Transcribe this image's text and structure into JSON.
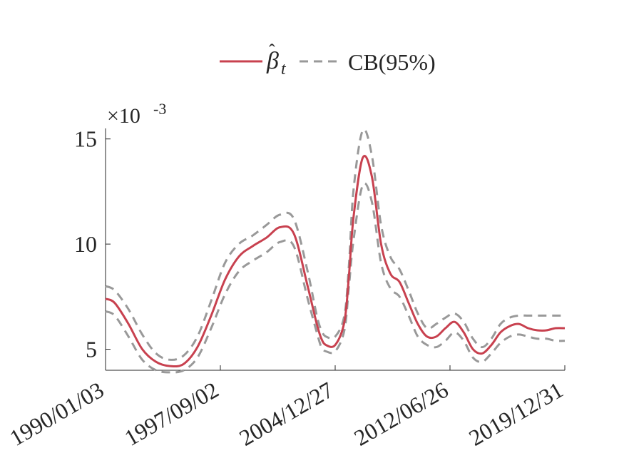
{
  "chart_data": {
    "type": "line",
    "title": "",
    "xlabel": "",
    "ylabel": "",
    "y_exponent_label": "×10",
    "y_exponent_power": "-3",
    "ylim": [
      4.0,
      15.5
    ],
    "yticks": [
      5,
      10,
      15
    ],
    "ytick_labels": [
      "5",
      "10",
      "15"
    ],
    "xlim": [
      0,
      1
    ],
    "xticks": [
      0,
      0.25,
      0.5,
      0.75,
      1.0
    ],
    "xtick_labels": [
      "1990/01/03",
      "1997/09/02",
      "2004/12/27",
      "2012/06/26",
      "2019/12/31"
    ],
    "legend_position": "top",
    "grid": false,
    "colors": {
      "estimate": "#c8414f",
      "band": "#999999",
      "axis": "#262626"
    },
    "legend": {
      "estimate_label": "β",
      "band_label": "CB(95%)"
    },
    "series": [
      {
        "name": "estimate",
        "style": "solid",
        "x": [
          0,
          0.02,
          0.05,
          0.08,
          0.11,
          0.14,
          0.17,
          0.2,
          0.23,
          0.26,
          0.29,
          0.32,
          0.35,
          0.38,
          0.41,
          0.44,
          0.46,
          0.47,
          0.48,
          0.5,
          0.52,
          0.53,
          0.54,
          0.56,
          0.58,
          0.6,
          0.62,
          0.64,
          0.66,
          0.68,
          0.7,
          0.72,
          0.74,
          0.76,
          0.78,
          0.8,
          0.82,
          0.84,
          0.86,
          0.88,
          0.9,
          0.92,
          0.94,
          0.96,
          0.98,
          1.0
        ],
        "values": [
          7.4,
          7.2,
          6.2,
          5.0,
          4.4,
          4.2,
          4.3,
          5.1,
          6.6,
          8.3,
          9.4,
          9.9,
          10.3,
          10.8,
          10.5,
          8.0,
          6.2,
          5.5,
          5.2,
          5.2,
          6.3,
          8.5,
          11.3,
          14.1,
          13.2,
          10.0,
          8.6,
          8.2,
          7.2,
          6.2,
          5.6,
          5.6,
          6.0,
          6.3,
          5.8,
          5.0,
          4.8,
          5.2,
          5.8,
          6.1,
          6.2,
          6.0,
          5.9,
          5.9,
          6.0,
          6.0
        ]
      },
      {
        "name": "upper",
        "style": "dashed",
        "x": [
          0,
          0.02,
          0.05,
          0.08,
          0.11,
          0.14,
          0.17,
          0.2,
          0.23,
          0.26,
          0.29,
          0.32,
          0.35,
          0.38,
          0.41,
          0.44,
          0.46,
          0.47,
          0.48,
          0.5,
          0.52,
          0.53,
          0.54,
          0.56,
          0.58,
          0.6,
          0.62,
          0.64,
          0.66,
          0.68,
          0.7,
          0.72,
          0.74,
          0.76,
          0.78,
          0.8,
          0.82,
          0.84,
          0.86,
          0.88,
          0.9,
          0.92,
          0.94,
          0.96,
          0.98,
          1.0
        ],
        "values": [
          8.0,
          7.8,
          6.9,
          5.7,
          4.8,
          4.5,
          4.7,
          5.6,
          7.3,
          9.1,
          10.0,
          10.4,
          10.9,
          11.4,
          11.2,
          8.7,
          6.6,
          5.9,
          5.6,
          5.6,
          6.6,
          9.0,
          12.6,
          15.4,
          14.2,
          10.9,
          9.4,
          8.8,
          7.8,
          6.7,
          6.0,
          6.2,
          6.5,
          6.7,
          6.3,
          5.5,
          5.1,
          5.5,
          6.2,
          6.5,
          6.6,
          6.6,
          6.6,
          6.6,
          6.6,
          6.6
        ]
      },
      {
        "name": "lower",
        "style": "dashed",
        "x": [
          0,
          0.02,
          0.05,
          0.08,
          0.11,
          0.14,
          0.17,
          0.2,
          0.23,
          0.26,
          0.29,
          0.32,
          0.35,
          0.38,
          0.41,
          0.44,
          0.46,
          0.47,
          0.48,
          0.5,
          0.52,
          0.53,
          0.54,
          0.56,
          0.58,
          0.6,
          0.62,
          0.64,
          0.66,
          0.68,
          0.7,
          0.72,
          0.74,
          0.76,
          0.78,
          0.8,
          0.82,
          0.84,
          0.86,
          0.88,
          0.9,
          0.92,
          0.94,
          0.96,
          0.98,
          1.0
        ],
        "values": [
          6.8,
          6.6,
          5.6,
          4.5,
          4.0,
          3.9,
          4.0,
          4.6,
          6.0,
          7.6,
          8.7,
          9.2,
          9.6,
          10.1,
          9.9,
          7.4,
          5.8,
          5.1,
          4.9,
          4.9,
          5.9,
          8.0,
          10.2,
          12.8,
          12.0,
          9.1,
          7.9,
          7.5,
          6.6,
          5.6,
          5.2,
          5.1,
          5.4,
          5.8,
          5.4,
          4.6,
          4.4,
          4.8,
          5.3,
          5.6,
          5.7,
          5.6,
          5.5,
          5.5,
          5.4,
          5.4
        ]
      }
    ]
  }
}
